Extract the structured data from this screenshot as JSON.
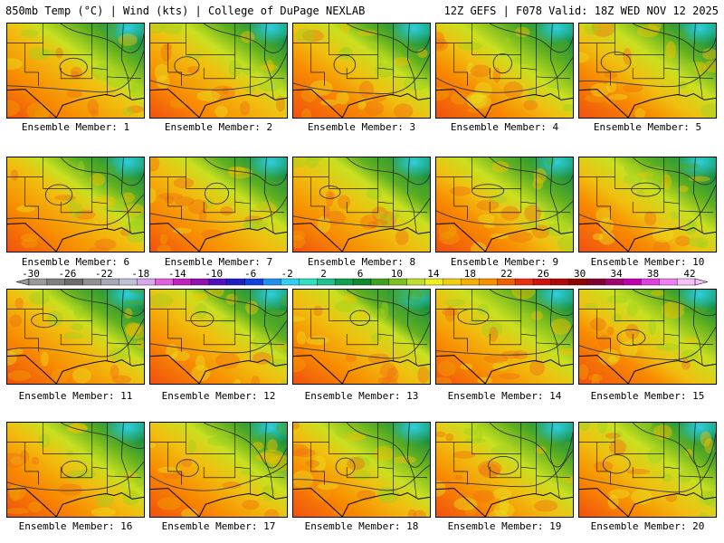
{
  "header": {
    "left": "850mb Temp (°C) | Wind (kts) | College of DuPage NEXLAB",
    "right": "12Z GEFS | F078 Valid: 18Z WED NOV 12 2025"
  },
  "members": [
    "Ensemble Member: 1",
    "Ensemble Member: 2",
    "Ensemble Member: 3",
    "Ensemble Member: 4",
    "Ensemble Member: 5",
    "Ensemble Member: 6",
    "Ensemble Member: 7",
    "Ensemble Member: 8",
    "Ensemble Member: 9",
    "Ensemble Member: 10",
    "Ensemble Member: 11",
    "Ensemble Member: 12",
    "Ensemble Member: 13",
    "Ensemble Member: 14",
    "Ensemble Member: 15",
    "Ensemble Member: 16",
    "Ensemble Member: 17",
    "Ensemble Member: 18",
    "Ensemble Member: 19",
    "Ensemble Member: 20"
  ],
  "colorbar": {
    "labels": [
      "-30",
      "-26",
      "-22",
      "-18",
      "-14",
      "-10",
      "-6",
      "-2",
      "2",
      "6",
      "10",
      "14",
      "18",
      "22",
      "26",
      "30",
      "34",
      "38",
      "42"
    ],
    "colors": [
      "#9a9a9a",
      "#808080",
      "#6c6c6c",
      "#909090",
      "#a8a8b8",
      "#c0c0d8",
      "#d8a8e8",
      "#e060e0",
      "#c020c0",
      "#9010b0",
      "#5010c0",
      "#2020c0",
      "#1040e0",
      "#2090f0",
      "#30d0f0",
      "#30e0c0",
      "#20c090",
      "#10a050",
      "#108a30",
      "#40a020",
      "#80c020",
      "#c0e030",
      "#f0f020",
      "#f0d010",
      "#f8b000",
      "#f89000",
      "#f06000",
      "#e83010",
      "#d01010",
      "#b00808",
      "#900000",
      "#800030",
      "#a00070",
      "#c000b0",
      "#e040e0",
      "#f080f0",
      "#f8c0f8"
    ]
  }
}
